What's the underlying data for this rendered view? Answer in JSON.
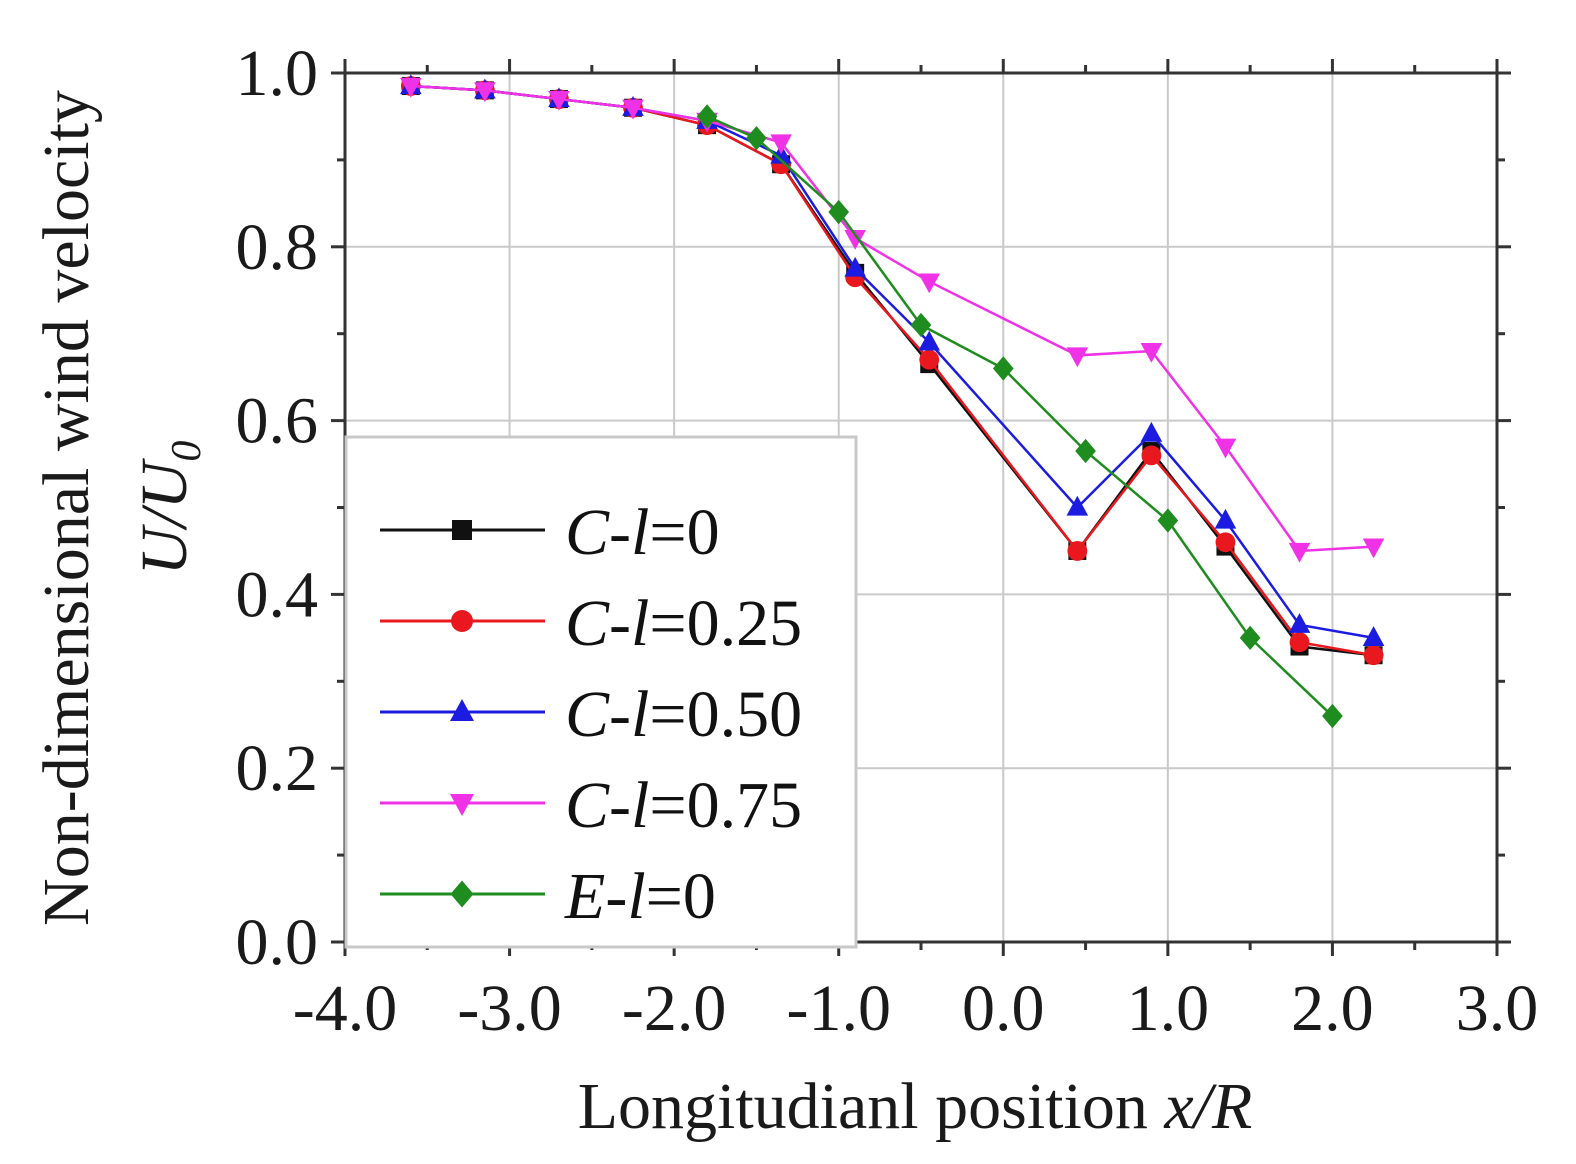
{
  "chart_data": {
    "type": "line",
    "xlabel": {
      "text": "Longitudianl position ",
      "var": "x/R"
    },
    "ylabel": {
      "line1": "Non-dimensional wind velocity",
      "var_main": "U/U",
      "var_sub": "0"
    },
    "xlim": [
      -4.0,
      3.0
    ],
    "ylim": [
      0.0,
      1.0
    ],
    "x_ticks": [
      -4.0,
      -3.0,
      -2.0,
      -1.0,
      0.0,
      1.0,
      2.0,
      3.0
    ],
    "x_tick_labels": [
      "-4.0",
      "-3.0",
      "-2.0",
      "-1.0",
      "0.0",
      "1.0",
      "2.0",
      "3.0"
    ],
    "y_ticks": [
      0.0,
      0.2,
      0.4,
      0.6,
      0.8,
      1.0
    ],
    "y_tick_labels": [
      "0.0",
      "0.2",
      "0.4",
      "0.6",
      "0.8",
      "1.0"
    ],
    "grid": true,
    "legend_position": "lower-left",
    "series": [
      {
        "name": "C-l=0",
        "label_var": "C",
        "label_mid": "-",
        "label_l": "l",
        "label_val": "=0",
        "color": "#111111",
        "marker": "square",
        "x": [
          -3.6,
          -3.15,
          -2.7,
          -2.25,
          -1.8,
          -1.35,
          -0.9,
          -0.45,
          0.45,
          0.9,
          1.35,
          1.8,
          2.25
        ],
        "y": [
          0.985,
          0.98,
          0.97,
          0.96,
          0.94,
          0.895,
          0.77,
          0.665,
          0.45,
          0.565,
          0.455,
          0.34,
          0.33
        ]
      },
      {
        "name": "C-l=0.25",
        "label_var": "C",
        "label_mid": "-",
        "label_l": "l",
        "label_val": "=0.25",
        "color": "#e8181e",
        "marker": "circle",
        "x": [
          -3.6,
          -3.15,
          -2.7,
          -2.25,
          -1.8,
          -1.35,
          -0.9,
          -0.45,
          0.45,
          0.9,
          1.35,
          1.8,
          2.25
        ],
        "y": [
          0.985,
          0.98,
          0.97,
          0.96,
          0.94,
          0.895,
          0.765,
          0.67,
          0.45,
          0.56,
          0.46,
          0.345,
          0.33
        ]
      },
      {
        "name": "C-l=0.50",
        "label_var": "C",
        "label_mid": "-",
        "label_l": "l",
        "label_val": "=0.50",
        "color": "#1c1ce0",
        "marker": "triangle-up",
        "x": [
          -3.6,
          -3.15,
          -2.7,
          -2.25,
          -1.8,
          -1.35,
          -0.9,
          -0.45,
          0.45,
          0.9,
          1.35,
          1.8,
          2.25
        ],
        "y": [
          0.985,
          0.98,
          0.97,
          0.96,
          0.945,
          0.905,
          0.775,
          0.69,
          0.5,
          0.585,
          0.485,
          0.365,
          0.35
        ]
      },
      {
        "name": "C-l=0.75",
        "label_var": "C",
        "label_mid": "-",
        "label_l": "l",
        "label_val": "=0.75",
        "color": "#f032e6",
        "marker": "triangle-down",
        "x": [
          -3.6,
          -3.15,
          -2.7,
          -2.25,
          -1.8,
          -1.35,
          -0.9,
          -0.45,
          0.45,
          0.9,
          1.35,
          1.8,
          2.25
        ],
        "y": [
          0.985,
          0.98,
          0.97,
          0.96,
          0.945,
          0.92,
          0.81,
          0.76,
          0.675,
          0.68,
          0.57,
          0.45,
          0.455
        ]
      },
      {
        "name": "E-l=0",
        "label_var": "E",
        "label_mid": "-",
        "label_l": "l",
        "label_val": "=0",
        "color": "#1e8c1e",
        "marker": "diamond",
        "x": [
          -1.8,
          -1.5,
          -1.0,
          -0.5,
          0.0,
          0.5,
          1.0,
          1.5,
          2.0
        ],
        "y": [
          0.95,
          0.925,
          0.84,
          0.71,
          0.66,
          0.565,
          0.485,
          0.35,
          0.26
        ]
      }
    ]
  }
}
